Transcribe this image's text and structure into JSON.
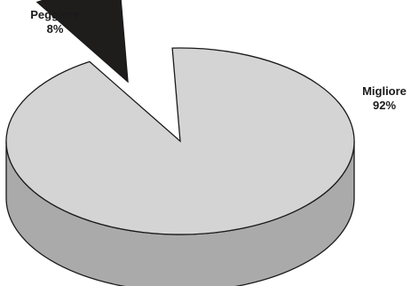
{
  "chart_data": {
    "type": "pie",
    "style": "3d",
    "title": "",
    "slices": [
      {
        "label": "Migliore",
        "value": 92,
        "value_label": "92%",
        "color": "#d4d4d4",
        "side_color": "#aaaaaa",
        "exploded": false
      },
      {
        "label": "Peggiore",
        "value": 8,
        "value_label": "8%",
        "color": "#1f1c1c",
        "side_color": "#1f1c1c",
        "exploded": true
      }
    ]
  }
}
